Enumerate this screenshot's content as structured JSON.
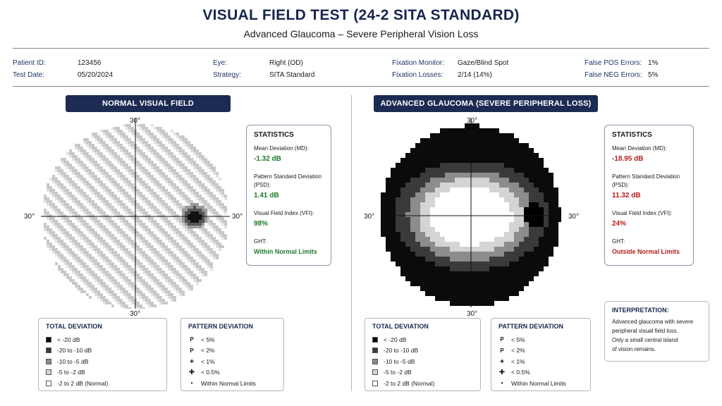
{
  "header": {
    "title": "VISUAL FIELD TEST (24-2 SITA STANDARD)",
    "subtitle": "Advanced Glaucoma – Severe Peripheral Vision Loss"
  },
  "patient": {
    "id_label": "Patient ID:",
    "id": "123456",
    "date_label": "Test Date:",
    "date": "05/20/2024",
    "eye_label": "Eye:",
    "eye": "Right (OD)",
    "strategy_label": "Strategy:",
    "strategy": "SITA Standard",
    "fixmon_label": "Fixation Monitor:",
    "fixmon": "Gaze/Blind Spot",
    "fixloss_label": "Fixation Losses:",
    "fixloss": "2/14 (14%)",
    "fpos_label": "False POS Errors:",
    "fpos": "1%",
    "fneg_label": "False NEG Errors:",
    "fneg": "5%"
  },
  "normal": {
    "title": "NORMAL VISUAL FIELD",
    "axis": {
      "top": "30°",
      "bottom": "30°",
      "left": "30°",
      "right": "30°"
    },
    "stats": {
      "title": "STATISTICS",
      "md_label": "Mean Deviation (MD):",
      "md": "-1.32 dB",
      "psd_label_1": "Pattern Standard Deviation",
      "psd_label_2": "(PSD):",
      "psd": "1.41 dB",
      "vfi_label": "Visual Field Index (VFI):",
      "vfi": "98%",
      "ght_label": "GHT:",
      "ght": "Within Normal Limits"
    }
  },
  "glaucoma": {
    "title": "ADVANCED GLAUCOMA (SEVERE PERIPHERAL LOSS)",
    "axis": {
      "top": "30°",
      "bottom": "30°",
      "left": "30°",
      "right": "30°"
    },
    "stats": {
      "title": "STATISTICS",
      "md_label": "Mean Deviation (MD):",
      "md": "-18.95 dB",
      "psd_label_1": "Pattern Standard Deviation",
      "psd_label_2": "(PSD):",
      "psd": "11.32 dB",
      "vfi_label": "Visual Field Index (VFI):",
      "vfi": "24%",
      "ght_label": "GHT:",
      "ght": "Outside Normal Limits"
    },
    "interpretation": {
      "title": "INTERPRETATION:",
      "lines": [
        "Advanced glaucoma with severe",
        "peripheral visual field loss.",
        "Only a small central island",
        "of vision remains."
      ]
    }
  },
  "legends": {
    "total": {
      "title": "TOTAL DEVIATION",
      "items": [
        {
          "label": "< -20 dB",
          "color": "#000000"
        },
        {
          "label": "-20 to -10 dB",
          "color": "#3a3a3a"
        },
        {
          "label": "-10 to -5 dB",
          "color": "#8c8c8c"
        },
        {
          "label": "-5 to -2 dB",
          "color": "#d4d4d4"
        },
        {
          "label": "-2 to 2 dB  (Normal)",
          "color": "#ffffff"
        }
      ]
    },
    "pattern": {
      "title": "PATTERN DEVIATION",
      "items": [
        {
          "sym": "P",
          "label": "< 5%"
        },
        {
          "sym": "P",
          "label": "< 2%"
        },
        {
          "sym": "✚",
          "label": "< 1%"
        },
        {
          "sym": "✚",
          "label": "< 0.5%"
        },
        {
          "sym": "•",
          "label": "Within Normal Limits"
        }
      ]
    }
  },
  "colors": {
    "navy": "#1c2b52",
    "green": "#1e7a2e",
    "red": "#b21e1e"
  }
}
